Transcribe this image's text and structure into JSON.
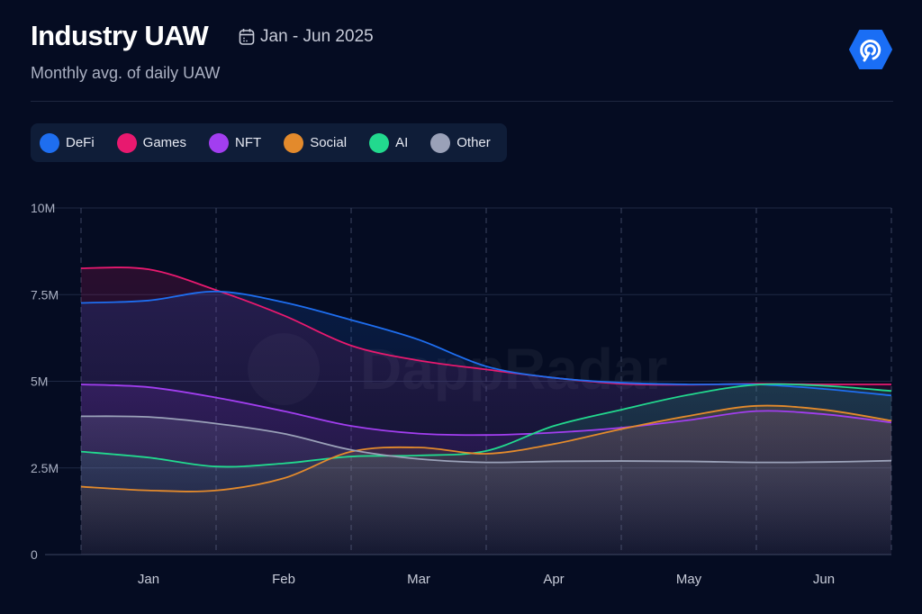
{
  "header": {
    "title": "Industry UAW",
    "date_range": "Jan - Jun 2025",
    "subtitle": "Monthly avg. of daily UAW",
    "calendar_icon": "calendar-icon",
    "logo_icon": "dappradar-logo-icon"
  },
  "watermark": "DappRadar",
  "chart_data": {
    "type": "area",
    "title": "Industry UAW",
    "subtitle": "Monthly avg. of daily UAW",
    "xlabel": "",
    "ylabel": "",
    "ylim": [
      0,
      10000000
    ],
    "yticks": [
      {
        "v": 0,
        "label": "0"
      },
      {
        "v": 2500000,
        "label": "2.5M"
      },
      {
        "v": 5000000,
        "label": "5M"
      },
      {
        "v": 7500000,
        "label": "7.5M"
      },
      {
        "v": 10000000,
        "label": "10M"
      }
    ],
    "xtick_labels": [
      "Jan",
      "Feb",
      "Mar",
      "Apr",
      "May",
      "Jun"
    ],
    "x": [
      "Jan-01",
      "Jan-16",
      "Feb-01",
      "Feb-15",
      "Mar-01",
      "Mar-16",
      "Apr-01",
      "Apr-16",
      "May-01",
      "May-16",
      "Jun-01",
      "Jun-16",
      "Jun-30"
    ],
    "grid": true,
    "legend_position": "top-left",
    "series": [
      {
        "name": "DeFi",
        "color": "#1e6ef0",
        "values": [
          7.26,
          7.33,
          7.59,
          7.28,
          6.77,
          6.2,
          5.43,
          5.1,
          4.96,
          4.91,
          4.91,
          4.78,
          4.59
        ]
      },
      {
        "name": "Games",
        "color": "#e8196f",
        "values": [
          8.26,
          8.23,
          7.63,
          6.9,
          6.03,
          5.6,
          5.34,
          5.1,
          4.93,
          4.9,
          4.93,
          4.91,
          4.91
        ]
      },
      {
        "name": "NFT",
        "color": "#a23ef0",
        "values": [
          4.91,
          4.83,
          4.53,
          4.14,
          3.71,
          3.49,
          3.45,
          3.52,
          3.66,
          3.88,
          4.14,
          4.05,
          3.81
        ]
      },
      {
        "name": "Social",
        "color": "#e38a2c",
        "values": [
          1.96,
          1.85,
          1.85,
          2.2,
          2.97,
          3.09,
          2.91,
          3.19,
          3.62,
          4.0,
          4.29,
          4.18,
          3.86
        ]
      },
      {
        "name": "AI",
        "color": "#22d98e",
        "values": [
          2.97,
          2.8,
          2.54,
          2.63,
          2.83,
          2.86,
          2.99,
          3.71,
          4.18,
          4.61,
          4.9,
          4.87,
          4.72
        ]
      },
      {
        "name": "Other",
        "color": "#9aa1b8",
        "values": [
          3.99,
          3.97,
          3.78,
          3.49,
          3.02,
          2.76,
          2.66,
          2.69,
          2.7,
          2.69,
          2.66,
          2.67,
          2.71
        ]
      }
    ],
    "value_unit": "M"
  }
}
